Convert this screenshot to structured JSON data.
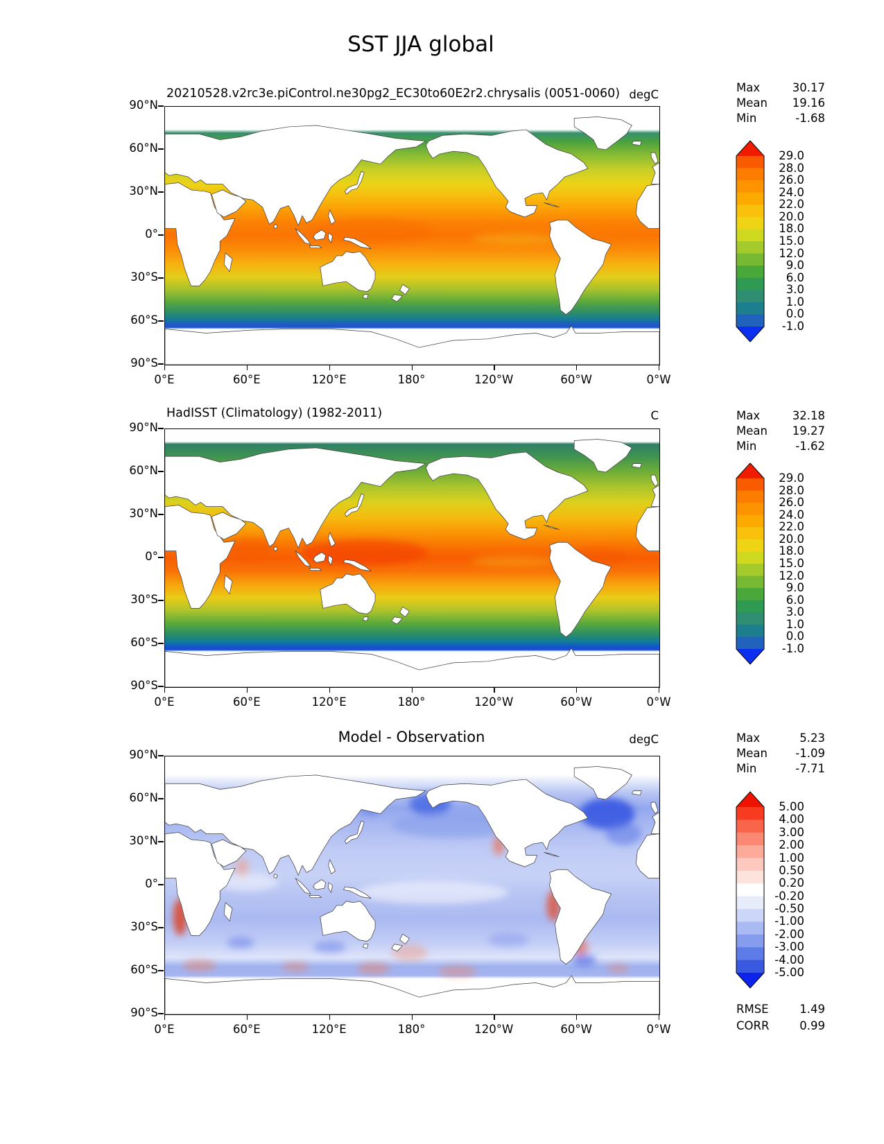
{
  "main_title": "SST JJA global",
  "axes": {
    "x_tick_labels": [
      "0°E",
      "60°E",
      "120°E",
      "180°",
      "120°W",
      "60°W",
      "0°W"
    ],
    "y_tick_labels": [
      "90°N",
      "60°N",
      "30°N",
      "0°",
      "30°S",
      "60°S",
      "90°S"
    ]
  },
  "panels": [
    {
      "id": "model",
      "title": "20210528.v2rc3e.piControl.ne30pg2_EC30to60E2r2.chrysalis (0051-0060)",
      "units": "degC",
      "stats": [
        {
          "label": "Max",
          "value": "30.17"
        },
        {
          "label": "Mean",
          "value": "19.16"
        },
        {
          "label": "Min",
          "value": "-1.68"
        }
      ],
      "colorbar": {
        "tick_labels": [
          "29.0",
          "28.0",
          "26.0",
          "24.0",
          "22.0",
          "20.0",
          "18.0",
          "15.0",
          "12.0",
          "9.0",
          "6.0",
          "3.0",
          "1.0",
          "0.0",
          "-1.0"
        ],
        "band_colors": [
          "#fb5b00",
          "#fd7d00",
          "#fe9300",
          "#fdaa00",
          "#f9c00c",
          "#eed414",
          "#cfd920",
          "#a4cb2b",
          "#78b933",
          "#4aa73a",
          "#2f9a51",
          "#2f8e72",
          "#1d7f8e",
          "#2062bc"
        ],
        "arrow_top_color": "#f11c00",
        "arrow_bottom_color": "#0a2fee"
      }
    },
    {
      "id": "obs",
      "title": "HadISST (Climatology) (1982-2011)",
      "units": "C",
      "stats": [
        {
          "label": "Max",
          "value": "32.18"
        },
        {
          "label": "Mean",
          "value": "19.27"
        },
        {
          "label": "Min",
          "value": "-1.62"
        }
      ],
      "colorbar": {
        "tick_labels": [
          "29.0",
          "28.0",
          "26.0",
          "24.0",
          "22.0",
          "20.0",
          "18.0",
          "15.0",
          "12.0",
          "9.0",
          "6.0",
          "3.0",
          "1.0",
          "0.0",
          "-1.0"
        ],
        "band_colors": [
          "#fb5b00",
          "#fd7d00",
          "#fe9300",
          "#fdaa00",
          "#f9c00c",
          "#eed414",
          "#cfd920",
          "#a4cb2b",
          "#78b933",
          "#4aa73a",
          "#2f9a51",
          "#2f8e72",
          "#1d7f8e",
          "#2062bc"
        ],
        "arrow_top_color": "#f11c00",
        "arrow_bottom_color": "#0a2fee"
      }
    },
    {
      "id": "diff",
      "title": "Model - Observation",
      "units": "degC",
      "stats": [
        {
          "label": "Max",
          "value": "5.23"
        },
        {
          "label": "Mean",
          "value": "-1.09"
        },
        {
          "label": "Min",
          "value": "-7.71"
        }
      ],
      "extra_stats": [
        {
          "label": "RMSE",
          "value": "1.49"
        },
        {
          "label": "CORR",
          "value": "0.99"
        }
      ],
      "colorbar": {
        "tick_labels": [
          "5.00",
          "4.00",
          "3.00",
          "2.00",
          "1.00",
          "0.50",
          "0.20",
          "-0.20",
          "-0.50",
          "-1.00",
          "-2.00",
          "-3.00",
          "-4.00",
          "-5.00"
        ],
        "band_colors": [
          "#f73b21",
          "#f9654b",
          "#fa8872",
          "#fcaa9a",
          "#fdc9bf",
          "#fee3dd",
          "#ffffff",
          "#e7ecfb",
          "#ccd6f8",
          "#aabbf3",
          "#859dec",
          "#5e7ce7",
          "#3959e0"
        ],
        "arrow_top_color": "#ee1300",
        "arrow_bottom_color": "#0b23ec"
      }
    }
  ],
  "chart_data": [
    {
      "type": "heatmap",
      "variable": "SST",
      "season": "JJA",
      "region": "global",
      "title": "20210528.v2rc3e.piControl.ne30pg2_EC30to60E2r2.chrysalis (0051-0060)",
      "units": "degC",
      "projection": "equirectangular, longitude 0E-360E left to right",
      "x_axis": {
        "tick_labels": [
          "0°E",
          "60°E",
          "120°E",
          "180°",
          "120°W",
          "60°W",
          "0°W"
        ],
        "range_deg": [
          0,
          360
        ]
      },
      "y_axis": {
        "tick_labels": [
          "90°N",
          "60°N",
          "30°N",
          "0°",
          "30°S",
          "60°S",
          "90°S"
        ],
        "range_deg": [
          -90,
          90
        ]
      },
      "stats": {
        "max": 30.17,
        "mean": 19.16,
        "min": -1.68
      },
      "colorbar": {
        "tick_values": [
          29,
          28,
          26,
          24,
          22,
          20,
          18,
          15,
          12,
          9,
          6,
          3,
          1,
          0,
          -1
        ],
        "extend": "both",
        "style": "rainbow"
      },
      "description": "Sea surface temperature: red-orange (28-30C) in tropics, yellow-green mid-latitudes, green-teal-blue toward 60S/60N, white poleward of data limit (~73N) and over Antarctica."
    },
    {
      "type": "heatmap",
      "variable": "SST",
      "season": "JJA",
      "region": "global",
      "title": "HadISST (Climatology) (1982-2011)",
      "units": "C",
      "projection": "equirectangular, longitude 0E-360E left to right",
      "x_axis": {
        "tick_labels": [
          "0°E",
          "60°E",
          "120°E",
          "180°",
          "120°W",
          "60°W",
          "0°W"
        ],
        "range_deg": [
          0,
          360
        ]
      },
      "y_axis": {
        "tick_labels": [
          "90°N",
          "60°N",
          "30°N",
          "0°",
          "30°S",
          "60°S",
          "90°S"
        ],
        "range_deg": [
          -90,
          90
        ]
      },
      "stats": {
        "max": 32.18,
        "mean": 19.27,
        "min": -1.62
      },
      "colorbar": {
        "tick_values": [
          29,
          28,
          26,
          24,
          22,
          20,
          18,
          15,
          12,
          9,
          6,
          3,
          1,
          0,
          -1
        ],
        "extend": "both",
        "style": "rainbow"
      },
      "description": "Observed SST climatology: stronger red warm pool (29-32C) in tropical Indo-Pacific, Arctic data to ~80N, blue band near 60S, white over Antarctica."
    },
    {
      "type": "heatmap",
      "variable": "SST bias (Model - Observation)",
      "season": "JJA",
      "region": "global",
      "title": "Model - Observation",
      "units": "degC",
      "projection": "equirectangular, longitude 0E-360E left to right",
      "x_axis": {
        "tick_labels": [
          "0°E",
          "60°E",
          "120°E",
          "180°",
          "120°W",
          "60°W",
          "0°W"
        ],
        "range_deg": [
          0,
          360
        ]
      },
      "y_axis": {
        "tick_labels": [
          "90°N",
          "60°N",
          "30°N",
          "0°",
          "30°S",
          "60°S",
          "90°S"
        ],
        "range_deg": [
          -90,
          90
        ]
      },
      "stats": {
        "max": 5.23,
        "mean": -1.09,
        "min": -7.71,
        "rmse": 1.49,
        "corr": 0.99
      },
      "colorbar": {
        "tick_values": [
          5,
          4,
          3,
          2,
          1,
          0.5,
          0.2,
          -0.2,
          -0.5,
          -1,
          -2,
          -3,
          -4,
          -5
        ],
        "extend": "both",
        "style": "blue-white-red diverging"
      },
      "description": "Mostly negative (blue) bias over oceans; strong cold bias in NW Atlantic and Bering Sea; warm (red) bias along eastern boundary upwelling coasts (Benguela, Peru-Chile, Baja California), off Argentina and patches near 50S."
    }
  ]
}
